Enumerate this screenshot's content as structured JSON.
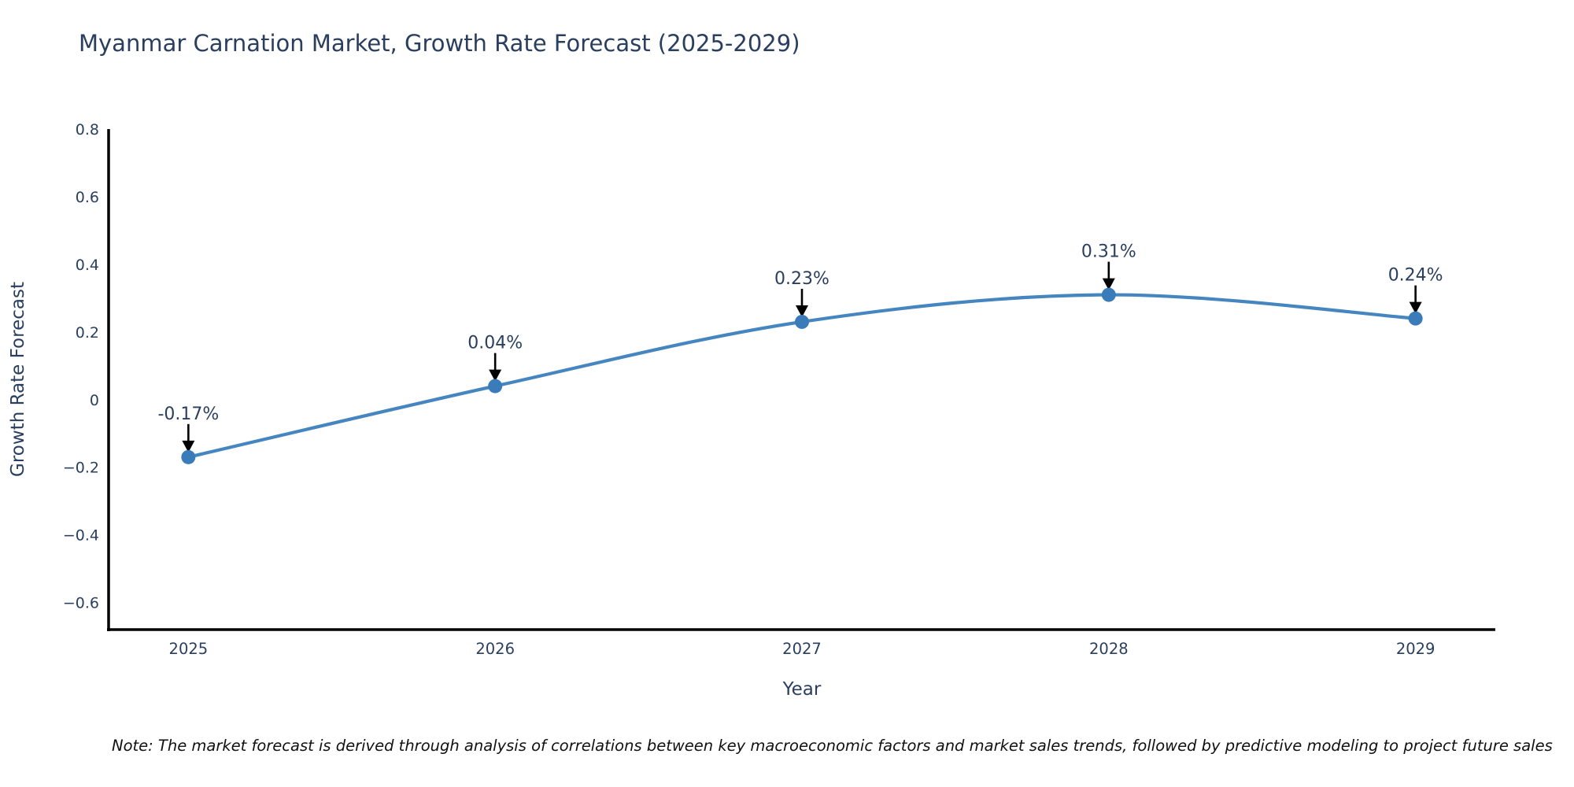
{
  "title": "Myanmar Carnation Market, Growth Rate Forecast (2025-2029)",
  "note": "Note: The market forecast is derived through analysis of correlations between key macroeconomic factors and market sales trends, followed by predictive modeling to project future sales",
  "chart_data": {
    "type": "line",
    "title": "Myanmar Carnation Market, Growth Rate Forecast (2025-2029)",
    "xlabel": "Year",
    "ylabel": "Growth Rate Forecast",
    "x": [
      2025,
      2026,
      2027,
      2028,
      2029
    ],
    "x_tick_labels": [
      "2025",
      "2026",
      "2027",
      "2028",
      "2029"
    ],
    "values": [
      -0.17,
      0.04,
      0.23,
      0.31,
      0.24
    ],
    "point_labels": [
      "-0.17%",
      "0.04%",
      "0.23%",
      "0.31%",
      "0.24%"
    ],
    "y_ticks": [
      0.8,
      0.6,
      0.4,
      0.2,
      0,
      -0.2,
      -0.4,
      -0.6
    ],
    "y_tick_labels": [
      "0.8",
      "0.6",
      "0.4",
      "0.2",
      "0",
      "−0.2",
      "−0.4",
      "−0.6"
    ],
    "xlim": [
      2024.74,
      2029.26
    ],
    "ylim": [
      -0.68,
      0.8
    ],
    "line_shape": "spline",
    "grid": false,
    "legend": "none",
    "annotations_have_arrows": true,
    "colors": {
      "line": "#4586c0",
      "marker": "#3a7bba",
      "axis_line": "#000000",
      "text": "#2a3f5f",
      "annotation_text": "#2a3f5f",
      "annotation_arrow": "#000000",
      "background": "#ffffff"
    }
  }
}
